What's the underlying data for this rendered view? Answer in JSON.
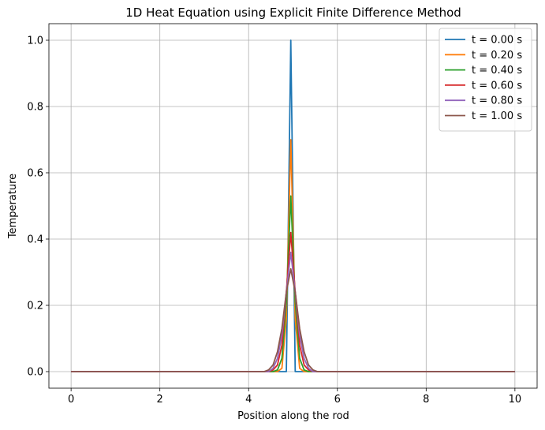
{
  "chart_data": {
    "type": "line",
    "title": "1D Heat Equation using Explicit Finite Difference Method",
    "xlabel": "Position along the rod",
    "ylabel": "Temperature",
    "xlim": [
      -0.5,
      10.5
    ],
    "ylim": [
      -0.05,
      1.05
    ],
    "xticks": [
      0,
      2,
      4,
      6,
      8,
      10
    ],
    "yticks": [
      0.0,
      0.2,
      0.4,
      0.6,
      0.8,
      1.0
    ],
    "xtick_labels": [
      "0",
      "2",
      "4",
      "6",
      "8",
      "10"
    ],
    "ytick_labels": [
      "0.0",
      "0.2",
      "0.4",
      "0.6",
      "0.8",
      "1.0"
    ],
    "grid": true,
    "legend_position": "top-right",
    "series": [
      {
        "name": "t = 0.00 s",
        "color": "#1f77b4",
        "x": [
          0,
          4.85,
          4.95,
          5.05,
          10
        ],
        "y": [
          0,
          0,
          1.0,
          0,
          0
        ]
      },
      {
        "name": "t = 0.20 s",
        "color": "#ff7f0e",
        "x": [
          0,
          4.65,
          4.75,
          4.85,
          4.95,
          5.05,
          5.15,
          5.25,
          10
        ],
        "y": [
          0,
          0,
          0.01,
          0.16,
          0.7,
          0.16,
          0.01,
          0,
          0
        ]
      },
      {
        "name": "t = 0.40 s",
        "color": "#2ca02c",
        "x": [
          0,
          4.55,
          4.65,
          4.75,
          4.85,
          4.95,
          5.05,
          5.15,
          5.25,
          5.35,
          10
        ],
        "y": [
          0,
          0,
          0.005,
          0.04,
          0.21,
          0.53,
          0.21,
          0.04,
          0.005,
          0,
          0
        ]
      },
      {
        "name": "t = 0.60 s",
        "color": "#d62728",
        "x": [
          0,
          4.45,
          4.55,
          4.65,
          4.75,
          4.85,
          4.95,
          5.05,
          5.15,
          5.25,
          5.35,
          5.45,
          10
        ],
        "y": [
          0,
          0,
          0.005,
          0.02,
          0.08,
          0.24,
          0.42,
          0.24,
          0.08,
          0.02,
          0.005,
          0,
          0
        ]
      },
      {
        "name": "t = 0.80 s",
        "color": "#9467bd",
        "x": [
          0,
          4.45,
          4.55,
          4.65,
          4.75,
          4.85,
          4.95,
          5.05,
          5.15,
          5.25,
          5.35,
          5.45,
          10
        ],
        "y": [
          0,
          0,
          0.01,
          0.04,
          0.11,
          0.24,
          0.36,
          0.24,
          0.11,
          0.04,
          0.01,
          0,
          0
        ]
      },
      {
        "name": "t = 1.00 s",
        "color": "#8c564b",
        "x": [
          0,
          4.35,
          4.45,
          4.55,
          4.65,
          4.75,
          4.85,
          4.95,
          5.05,
          5.15,
          5.25,
          5.35,
          5.45,
          5.55,
          10
        ],
        "y": [
          0,
          0,
          0.005,
          0.02,
          0.06,
          0.13,
          0.24,
          0.31,
          0.24,
          0.13,
          0.06,
          0.02,
          0.005,
          0,
          0
        ]
      }
    ]
  }
}
